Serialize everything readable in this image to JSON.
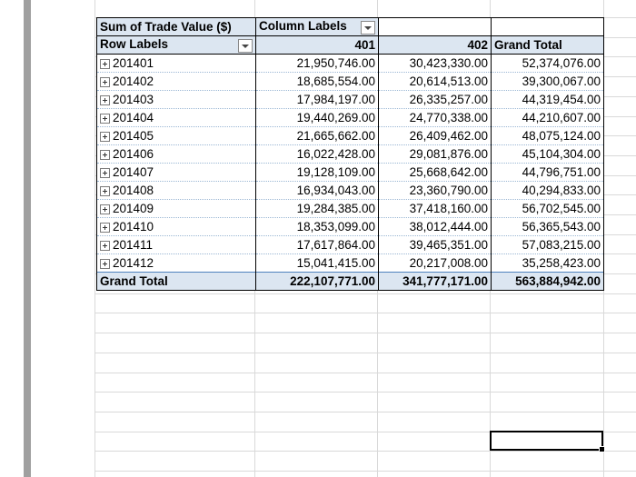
{
  "pivot": {
    "header1": {
      "values_label": "Sum of Trade Value ($)",
      "column_labels": "Column Labels"
    },
    "header2": {
      "row_labels": "Row Labels",
      "col1": "401",
      "col2": "402",
      "grand_total": "Grand Total"
    },
    "rows": [
      {
        "label": "201401",
        "v401": "21,950,746.00",
        "v402": "30,423,330.00",
        "total": "52,374,076.00"
      },
      {
        "label": "201402",
        "v401": "18,685,554.00",
        "v402": "20,614,513.00",
        "total": "39,300,067.00"
      },
      {
        "label": "201403",
        "v401": "17,984,197.00",
        "v402": "26,335,257.00",
        "total": "44,319,454.00"
      },
      {
        "label": "201404",
        "v401": "19,440,269.00",
        "v402": "24,770,338.00",
        "total": "44,210,607.00"
      },
      {
        "label": "201405",
        "v401": "21,665,662.00",
        "v402": "26,409,462.00",
        "total": "48,075,124.00"
      },
      {
        "label": "201406",
        "v401": "16,022,428.00",
        "v402": "29,081,876.00",
        "total": "45,104,304.00"
      },
      {
        "label": "201407",
        "v401": "19,128,109.00",
        "v402": "25,668,642.00",
        "total": "44,796,751.00"
      },
      {
        "label": "201408",
        "v401": "16,934,043.00",
        "v402": "23,360,790.00",
        "total": "40,294,833.00"
      },
      {
        "label": "201409",
        "v401": "19,284,385.00",
        "v402": "37,418,160.00",
        "total": "56,702,545.00"
      },
      {
        "label": "201410",
        "v401": "18,353,099.00",
        "v402": "38,012,444.00",
        "total": "56,365,543.00"
      },
      {
        "label": "201411",
        "v401": "17,617,864.00",
        "v402": "39,465,351.00",
        "total": "57,083,215.00"
      },
      {
        "label": "201412",
        "v401": "15,041,415.00",
        "v402": "20,217,008.00",
        "total": "35,258,423.00"
      }
    ],
    "grand_total_row": {
      "label": "Grand Total",
      "v401": "222,107,771.00",
      "v402": "341,777,171.00",
      "total": "563,884,942.00"
    }
  },
  "icons": {
    "dropdown": "dropdown-arrow-icon",
    "expand": "expand-plus-icon"
  }
}
